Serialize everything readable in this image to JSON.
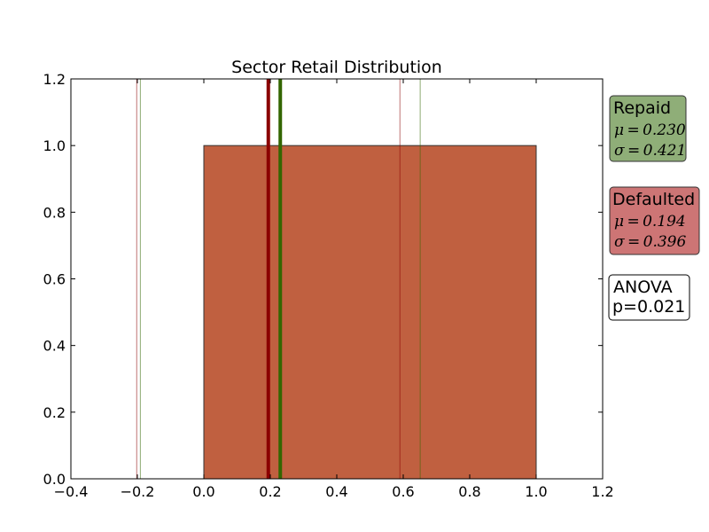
{
  "chart_data": {
    "type": "bar",
    "title": "Sector Retail Distribution",
    "xlabel": "",
    "ylabel": "",
    "xlim": [
      -0.4,
      1.2
    ],
    "ylim": [
      0.0,
      1.2
    ],
    "x_ticks": [
      "−0.4",
      "−0.2",
      "0.0",
      "0.2",
      "0.4",
      "0.6",
      "0.8",
      "1.0",
      "1.2"
    ],
    "y_ticks": [
      "0.0",
      "0.2",
      "0.4",
      "0.6",
      "0.8",
      "1.0",
      "1.2"
    ],
    "bars": [
      {
        "x_start": 0.0,
        "x_end": 1.0,
        "height": 1.0,
        "color": "#c06040"
      }
    ],
    "series": [
      {
        "name": "Repaid",
        "mean": 0.23,
        "std": 0.421,
        "color": "#336600",
        "box_color": "#8fae78"
      },
      {
        "name": "Defaulted",
        "mean": 0.194,
        "std": 0.396,
        "color": "#8b0000",
        "box_color": "#cd7575"
      }
    ],
    "boxes": {
      "repaid": {
        "title": "Repaid",
        "mu": "μ = 0.230",
        "sigma": "σ = 0.421"
      },
      "defaulted": {
        "title": "Defaulted",
        "mu": "μ = 0.194",
        "sigma": "σ = 0.396"
      },
      "anova": {
        "line1": "ANOVA",
        "line2": "p=0.021"
      }
    },
    "grid": false
  }
}
